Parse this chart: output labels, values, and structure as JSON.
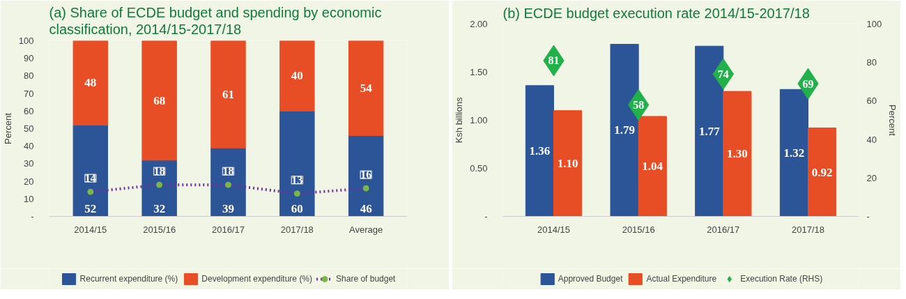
{
  "chart_data": [
    {
      "type": "bar",
      "title": "(a) Share of ECDE budget and spending by economic classification, 2014/15-2017/18",
      "ylabel": "Percent",
      "stacked": true,
      "data_labels": true,
      "legend": "bottom",
      "grid": false,
      "categories": [
        "2014/15",
        "2015/16",
        "2016/17",
        "2017/18",
        "Average"
      ],
      "ylim": [
        0,
        100
      ],
      "yticks": [
        {
          "value": 0,
          "label": "-"
        },
        10,
        20,
        30,
        40,
        50,
        60,
        70,
        80,
        90,
        100
      ],
      "series": [
        {
          "name": "Recurrent expenditure (%)",
          "color": "#2b5597",
          "values": [
            52,
            32,
            39,
            60,
            46
          ]
        },
        {
          "name": "Development expenditure (%)",
          "color": "#e84e25",
          "values": [
            48,
            68,
            61,
            40,
            54
          ]
        },
        {
          "name": "Share of budget",
          "type": "line",
          "color": "#7030a0",
          "colors": [
            "#7ab648",
            "#7ab648",
            "#7ab648",
            "#7ab648",
            "#7ab648"
          ],
          "marker": "circle",
          "line_style": "dotted",
          "values": [
            14,
            18,
            18,
            13,
            16
          ]
        }
      ]
    },
    {
      "type": "bar",
      "title": "(b) ECDE budget execution rate 2014/15-2017/18",
      "ylabel": "Ksh billions",
      "y2label": "Percent",
      "legend": "bottom",
      "grid": false,
      "categories": [
        "2014/15",
        "2015/16",
        "2016/17",
        "2017/18"
      ],
      "ylim": [
        0,
        2
      ],
      "yticks": [
        {
          "value": 0,
          "label": "-"
        },
        {
          "value": 0.5,
          "label": "0.50"
        },
        {
          "value": 1,
          "label": "1.00"
        },
        {
          "value": 1.5,
          "label": "1.50"
        },
        {
          "value": 2,
          "label": "2.00"
        }
      ],
      "y2lim": [
        0,
        100
      ],
      "y2ticks": [
        {
          "value": 0,
          "label": "-"
        },
        20,
        40,
        60,
        80,
        100
      ],
      "series": [
        {
          "name": "Approved Budget",
          "color": "#2b5597",
          "values": [
            1.36,
            1.79,
            1.77,
            1.32
          ],
          "value_labels": [
            "1.36",
            "1.79",
            "1.77",
            "1.32"
          ]
        },
        {
          "name": "Actual Expenditure",
          "color": "#e84e25",
          "values": [
            1.1,
            1.04,
            1.3,
            0.92
          ],
          "value_labels": [
            "1.10",
            "1.04",
            "1.30",
            "0.92"
          ]
        },
        {
          "name": "Execution Rate (RHS)",
          "type": "scatter",
          "axis": "y2",
          "marker": "diamond",
          "color": "#22b04b",
          "values": [
            81,
            58,
            74,
            69
          ],
          "value_labels": [
            "81",
            "58",
            "74",
            "69"
          ]
        }
      ]
    }
  ]
}
